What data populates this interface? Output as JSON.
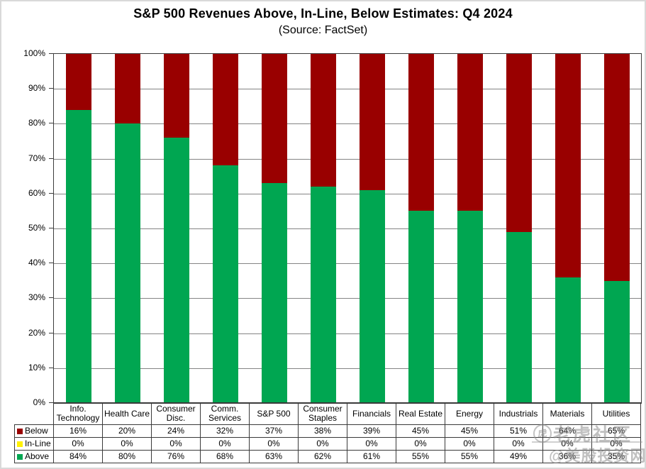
{
  "chart_data": {
    "type": "bar",
    "stacked": true,
    "title": "S&P 500 Revenues Above, In-Line, Below Estimates: Q4 2024",
    "subtitle": "(Source: FactSet)",
    "categories": [
      "Info.\nTechnology",
      "Health Care",
      "Consumer\nDisc.",
      "Comm.\nServices",
      "S&P 500",
      "Consumer\nStaples",
      "Financials",
      "Real Estate",
      "Energy",
      "Industrials",
      "Materials",
      "Utilities"
    ],
    "series": [
      {
        "name": "Below",
        "color": "#990000",
        "values": [
          16,
          20,
          24,
          32,
          37,
          38,
          39,
          45,
          45,
          51,
          64,
          65
        ]
      },
      {
        "name": "In-Line",
        "color": "#FFF100",
        "values": [
          0,
          0,
          0,
          0,
          0,
          0,
          0,
          0,
          0,
          0,
          0,
          0
        ]
      },
      {
        "name": "Above",
        "color": "#00A651",
        "values": [
          84,
          80,
          76,
          68,
          63,
          62,
          61,
          55,
          55,
          49,
          36,
          35
        ]
      }
    ],
    "y_ticks": [
      "0%",
      "10%",
      "20%",
      "30%",
      "40%",
      "50%",
      "60%",
      "70%",
      "80%",
      "90%",
      "100%"
    ],
    "ylim": [
      0,
      100
    ],
    "grid": true,
    "legend_position": "table-left",
    "value_suffix": "%"
  },
  "watermark": {
    "logo_glyph": "虎",
    "line1": "老虎社区",
    "line2": "@美股投资网"
  }
}
